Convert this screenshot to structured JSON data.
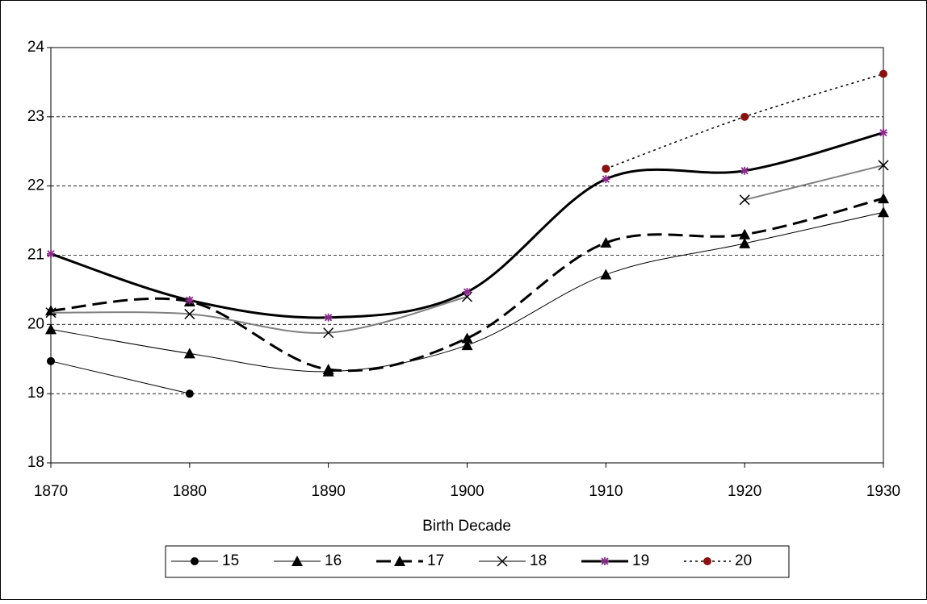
{
  "chart_data": {
    "type": "line",
    "x_label": "Birth Decade",
    "x": [
      1870,
      1880,
      1890,
      1900,
      1910,
      1920,
      1930
    ],
    "xlim": [
      1870,
      1930
    ],
    "xticks": [
      1870,
      1880,
      1890,
      1900,
      1910,
      1920,
      1930
    ],
    "ylim": [
      18,
      24
    ],
    "yticks": [
      18,
      19,
      20,
      21,
      22,
      23,
      24
    ],
    "grid": true,
    "legend": "bottom",
    "series": [
      {
        "name": "15",
        "color": "#000000",
        "marker_color": "#000000",
        "marker": "circle",
        "line_style": "solid",
        "line_width": 1,
        "values": [
          19.47,
          19.0,
          null,
          null,
          null,
          null,
          null
        ]
      },
      {
        "name": "16",
        "color": "#000000",
        "marker_color": "#000000",
        "marker": "triangle",
        "line_style": "solid",
        "line_width": 1,
        "values": [
          19.93,
          19.58,
          19.32,
          19.7,
          20.72,
          21.17,
          21.62
        ]
      },
      {
        "name": "17",
        "color": "#000000",
        "marker_color": "#000000",
        "marker": "triangle",
        "line_style": "dashed",
        "line_width": 3,
        "values": [
          20.2,
          20.33,
          19.35,
          19.8,
          21.18,
          21.3,
          21.82
        ]
      },
      {
        "name": "18",
        "color": "#808080",
        "marker_color": "#000000",
        "marker": "x",
        "line_style": "solid",
        "line_width": 2,
        "values": [
          20.17,
          20.15,
          19.88,
          20.4,
          null,
          21.8,
          22.3
        ]
      },
      {
        "name": "19",
        "color": "#000000",
        "marker_color": "#8b2b8b",
        "marker": "star",
        "line_style": "solid",
        "line_width": 3,
        "values": [
          21.02,
          20.35,
          20.1,
          20.47,
          22.1,
          22.22,
          22.77
        ]
      },
      {
        "name": "20",
        "color": "#000000",
        "marker_color": "#8b1010",
        "marker": "circle",
        "line_style": "dotted",
        "line_width": 1.5,
        "values": [
          null,
          null,
          null,
          null,
          22.25,
          23.0,
          23.62
        ]
      }
    ]
  }
}
